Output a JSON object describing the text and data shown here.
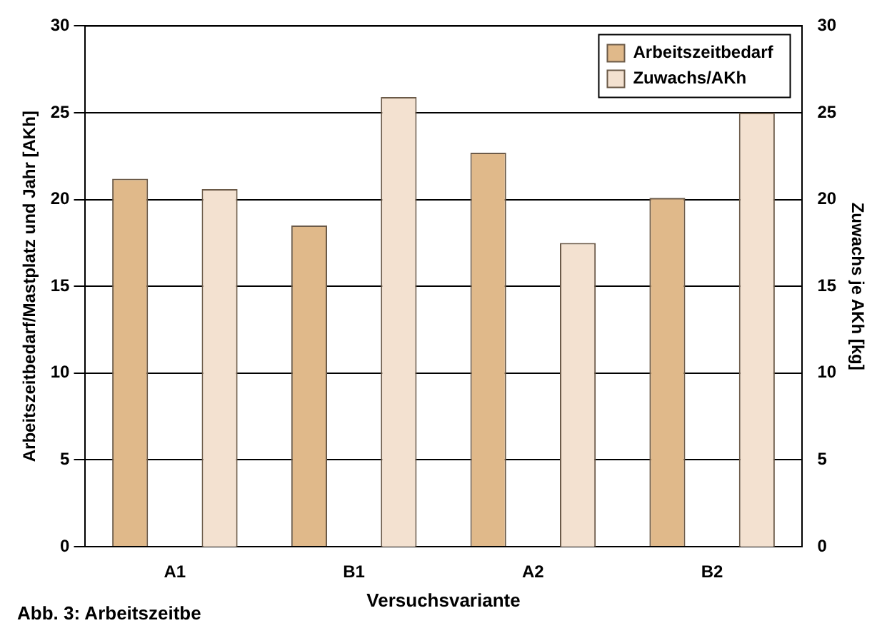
{
  "chart_data": {
    "type": "bar",
    "categories": [
      "A1",
      "B1",
      "A2",
      "B2"
    ],
    "series": [
      {
        "name": "Arbeitszeitbedarf",
        "color": "#e0b98a",
        "values": [
          21.2,
          18.5,
          22.7,
          20.1
        ]
      },
      {
        "name": "Zuwachs/AKh",
        "color": "#f3e1d0",
        "values": [
          20.6,
          25.9,
          17.5,
          25.0
        ],
        "axis": "y2"
      }
    ],
    "xlabel": "Versuchsvariante",
    "ylabel": "Arbeitszeitbedarf/Mastplatz und Jahr [AKh]",
    "y2label": "Zuwachs je AKh [kg]",
    "ylim": [
      0,
      30
    ],
    "yticks": [
      0,
      5,
      10,
      15,
      20,
      25,
      30
    ],
    "y2lim": [
      0,
      30
    ],
    "y2ticks": [
      0,
      5,
      10,
      15,
      20,
      25,
      30
    ],
    "grid": "y",
    "legend": "top right",
    "annotations": [
      "Abb. 3: Arbeitszeitbe"
    ]
  }
}
